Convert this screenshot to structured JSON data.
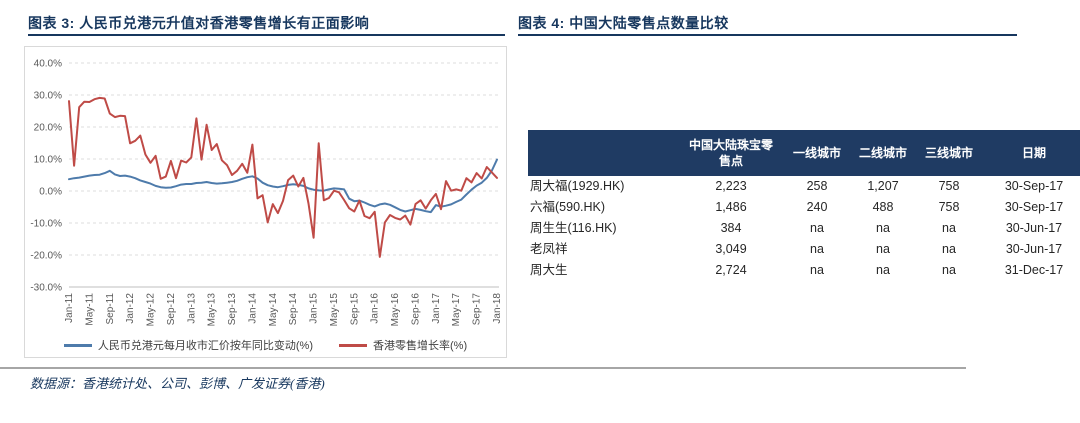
{
  "page": {
    "footer_source": "数据源：香港统计处、公司、彭博、广发证券(香港)"
  },
  "figure3": {
    "title": "图表 3: 人民币兑港元升值对香港零售增长有正面影响"
  },
  "figure4": {
    "title": "图表 4: 中国大陆零售点数量比较",
    "table": {
      "columns": [
        "",
        "中国大陆珠宝零售点",
        "一线城市",
        "二线城市",
        "三线城市",
        "日期"
      ],
      "rows": [
        [
          "周大福(1929.HK)",
          "2,223",
          "258",
          "1,207",
          "758",
          "30-Sep-17"
        ],
        [
          "六福(590.HK)",
          "1,486",
          "240",
          "488",
          "758",
          "30-Sep-17"
        ],
        [
          "周生生(116.HK)",
          "384",
          "na",
          "na",
          "na",
          "30-Jun-17"
        ],
        [
          "老凤祥",
          "3,049",
          "na",
          "na",
          "na",
          "30-Jun-17"
        ],
        [
          "周大生",
          "2,724",
          "na",
          "na",
          "na",
          "31-Dec-17"
        ]
      ]
    }
  },
  "chart_data": {
    "type": "line",
    "title": "",
    "xlabel": "",
    "ylabel": "",
    "ylim": [
      -30,
      40
    ],
    "y_ticks": [
      40,
      30,
      20,
      10,
      0,
      -10,
      -20,
      -30
    ],
    "y_tick_format": "0.0%",
    "grid": "horizontal-dashed",
    "legend_position": "bottom",
    "x_unit": "month (Jan-2011 to Jan-2018, monthly)",
    "x_tick_every": 4,
    "x_tick_labels": [
      "Jan-11",
      "May-11",
      "Sep-11",
      "Jan-12",
      "May-12",
      "Sep-12",
      "Jan-13",
      "May-13",
      "Sep-13",
      "Jan-14",
      "May-14",
      "Sep-14",
      "Jan-15",
      "May-15",
      "Sep-15",
      "Jan-16",
      "May-16",
      "Sep-16",
      "Jan-17",
      "May-17",
      "Sep-17",
      "Jan-18"
    ],
    "series": [
      {
        "name": "人民币兑港元每月收市汇价按年同比变动(%)",
        "color": "#4e7bab",
        "values": [
          3.7,
          4.0,
          4.2,
          4.5,
          4.8,
          5.0,
          5.1,
          5.6,
          6.3,
          5.2,
          4.7,
          4.8,
          4.5,
          4.0,
          3.3,
          2.8,
          2.3,
          1.6,
          1.2,
          1.0,
          1.1,
          1.5,
          2.0,
          2.2,
          2.2,
          2.5,
          2.6,
          2.8,
          2.5,
          2.3,
          2.4,
          2.6,
          2.8,
          3.2,
          3.8,
          4.3,
          4.6,
          3.9,
          2.6,
          1.8,
          1.4,
          1.2,
          1.5,
          1.9,
          2.1,
          1.9,
          1.6,
          0.8,
          0.4,
          0.2,
          0.1,
          0.5,
          0.8,
          0.7,
          0.5,
          -2.4,
          -3.2,
          -3.0,
          -3.6,
          -4.3,
          -4.8,
          -4.2,
          -3.9,
          -4.3,
          -5.1,
          -5.9,
          -6.4,
          -6.0,
          -5.6,
          -5.9,
          -6.3,
          -6.6,
          -4.4,
          -4.9,
          -4.6,
          -4.2,
          -3.4,
          -2.7,
          -1.1,
          0.4,
          1.7,
          2.6,
          4.1,
          6.4,
          9.8
        ]
      },
      {
        "name": "香港零售增长率(%)",
        "color": "#bf4b47",
        "values": [
          28.1,
          7.9,
          26.2,
          27.9,
          27.8,
          28.7,
          29.1,
          28.9,
          24.2,
          23.1,
          23.5,
          23.4,
          14.9,
          15.7,
          17.3,
          11.4,
          8.8,
          11.0,
          3.8,
          4.5,
          9.4,
          4.0,
          9.5,
          8.9,
          10.5,
          22.7,
          9.8,
          20.7,
          12.8,
          14.7,
          9.6,
          8.1,
          5.0,
          6.3,
          8.5,
          5.7,
          14.5,
          -2.3,
          -1.3,
          -9.8,
          -4.1,
          -6.9,
          -3.1,
          3.4,
          4.8,
          1.4,
          4.1,
          -3.9,
          -14.6,
          14.9,
          -2.9,
          -2.2,
          0.1,
          -0.4,
          -2.8,
          -5.4,
          -6.4,
          -3.0,
          -7.8,
          -8.5,
          -6.5,
          -20.6,
          -9.8,
          -7.5,
          -8.4,
          -8.9,
          -7.7,
          -10.5,
          -4.1,
          -2.9,
          -5.5,
          -2.9,
          -0.9,
          -5.7,
          3.1,
          0.1,
          0.5,
          0.1,
          4.0,
          2.7,
          5.6,
          3.9,
          7.5,
          5.8,
          4.1
        ]
      }
    ]
  }
}
